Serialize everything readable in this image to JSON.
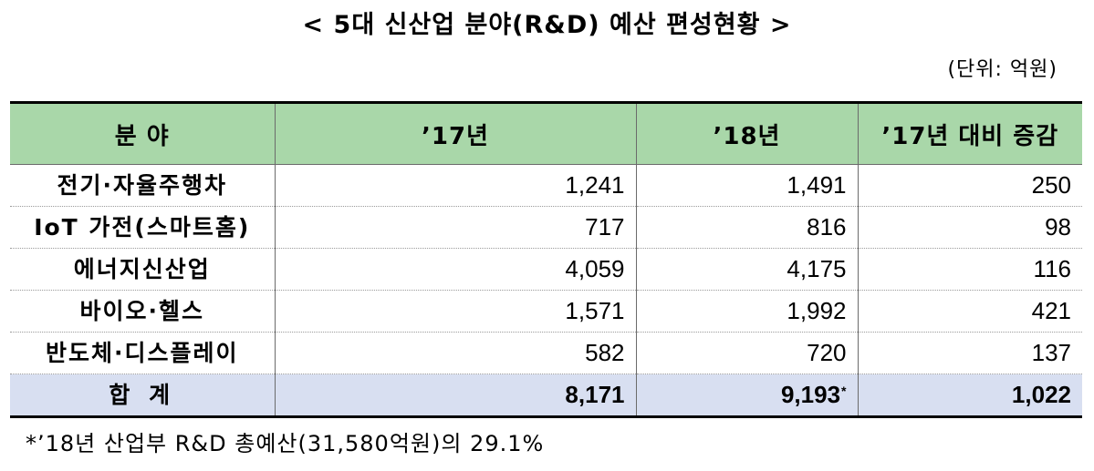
{
  "title": "< 5대 신산업 분야(R&D) 예산 편성현황 >",
  "unit": "(단위: 억원)",
  "table": {
    "headers": [
      "분 야",
      "’17년",
      "’18년",
      "’17년 대비 증감"
    ],
    "rows": [
      {
        "label": "전기·자율주행차",
        "y17": "1,241",
        "y18": "1,491",
        "diff": "250"
      },
      {
        "label": "IoT 가전(스마트홈)",
        "y17": "717",
        "y18": "816",
        "diff": "98"
      },
      {
        "label": "에너지신산업",
        "y17": "4,059",
        "y18": "4,175",
        "diff": "116"
      },
      {
        "label": "바이오·헬스",
        "y17": "1,571",
        "y18": "1,992",
        "diff": "421"
      },
      {
        "label": "반도체·디스플레이",
        "y17": "582",
        "y18": "720",
        "diff": "137"
      }
    ],
    "total": {
      "label": "합 계",
      "y17": "8,171",
      "y18": "9,193",
      "y18_mark": "*",
      "diff": "1,022"
    }
  },
  "footnote": "*’18년 산업부 R&D 총예산(31,580억원)의 29.1%"
}
